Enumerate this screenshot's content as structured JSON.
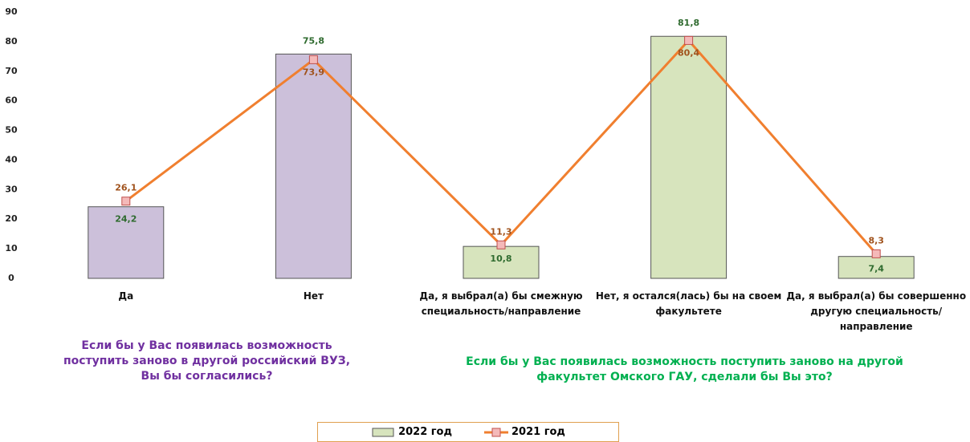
{
  "chart_data": {
    "type": "bar_line",
    "categories": [
      "Да",
      "Нет",
      "Да, я выбрал(а) бы смежную специальность/направление",
      "Нет, я остался(лась) бы на своем факультете",
      "Да, я выбрал(а) бы совершенно другую специальность/направление"
    ],
    "series": [
      {
        "name": "2022 год",
        "type": "bar",
        "color": "#d7e4bd",
        "colors": [
          "#ccc0da",
          "#ccc0da",
          "#d7e4bd",
          "#d7e4bd",
          "#d7e4bd"
        ],
        "values": [
          24.2,
          75.8,
          10.8,
          81.8,
          7.4
        ],
        "value_labels": [
          "24,2",
          "75,8",
          "10,8",
          "81,8",
          "7,4"
        ]
      },
      {
        "name": "2021 год",
        "type": "line",
        "color": "#f07f2f",
        "values": [
          26.1,
          73.9,
          11.3,
          80.4,
          8.3
        ],
        "value_labels": [
          "26,1",
          "73,9",
          "11,3",
          "80,4",
          "8,3"
        ]
      }
    ],
    "ylim": [
      0,
      90
    ],
    "yticks": [
      0,
      10,
      20,
      30,
      40,
      50,
      60,
      70,
      80,
      90
    ],
    "grid": false,
    "annotations": [
      "Если бы у Вас появилась возможность поступить заново в другой российский ВУЗ, Вы бы согласились?",
      "Если бы у Вас появилась возможность поступить заново на другой факультет Омского ГАУ, сделали бы Вы это?"
    ],
    "legend": "bottom"
  }
}
